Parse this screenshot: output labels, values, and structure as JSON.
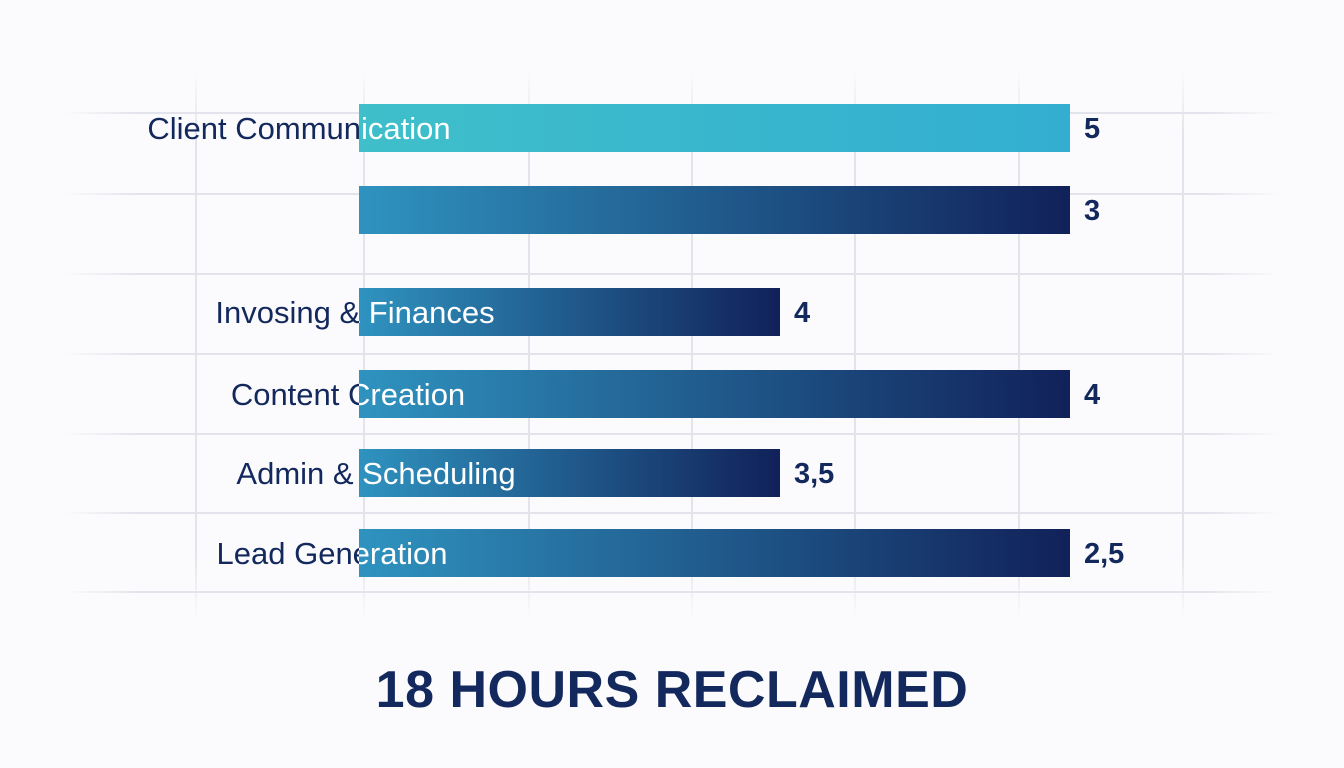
{
  "headline": "18 HOURS RECLAIMED",
  "colors": {
    "background": "#fbfbfd",
    "text_dark": "#13285c",
    "text_light": "#ffffff",
    "grid": "#e3e3eb",
    "bar_teal_light": "#3fbfca",
    "bar_teal": "#33aed1",
    "bar_gradient_start": "#2f93bf",
    "bar_gradient_end": "#112159"
  },
  "chart_data": {
    "type": "bar",
    "orientation": "horizontal",
    "grid": true,
    "legend": "none",
    "categories": [
      "Client Communication",
      "",
      "Invosing & Finances",
      "Content Creation",
      "Admin & Scheduling",
      "Lead Generation"
    ],
    "values": [
      5,
      3,
      4,
      4,
      3.5,
      2.5
    ],
    "value_labels": [
      "5",
      "3",
      "4",
      "4",
      "3,5",
      "2,5"
    ],
    "bar_length_fraction": [
      1,
      1,
      0.592,
      1,
      0.592,
      1
    ],
    "bar_style": [
      "teal",
      "gradient",
      "gradient",
      "gradient",
      "gradient",
      "gradient"
    ]
  }
}
